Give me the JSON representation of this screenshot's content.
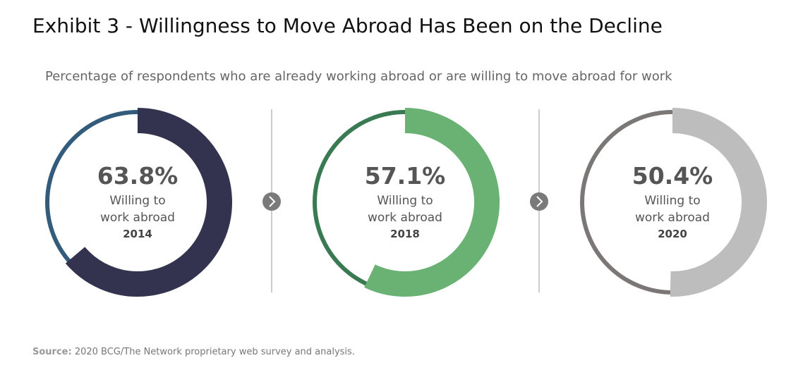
{
  "title": "Exhibit 3 - Willingness to Move Abroad Has Been on the Decline",
  "subtitle": "Percentage of respondents who are already working abroad or are willing to move abroad for work",
  "source": {
    "label": "Source:",
    "text": "2020 BCG/The Network proprietary web survey and analysis."
  },
  "chart_data": [
    {
      "type": "donut",
      "values": [
        63.8
      ],
      "value_labels": [
        "63.8%"
      ],
      "caption": "Willing to work abroad",
      "year": "2014",
      "color": "#33334f",
      "track_color": "#335b7b"
    },
    {
      "type": "donut",
      "values": [
        57.1
      ],
      "value_labels": [
        "57.1%"
      ],
      "caption": "Willing to work abroad",
      "year": "2018",
      "color": "#6ab174",
      "track_color": "#3a7a52"
    },
    {
      "type": "donut",
      "values": [
        50.4
      ],
      "value_labels": [
        "50.4%"
      ],
      "caption": "Willing to work abroad",
      "year": "2020",
      "color": "#bdbdbd",
      "track_color": "#7a7776"
    }
  ]
}
